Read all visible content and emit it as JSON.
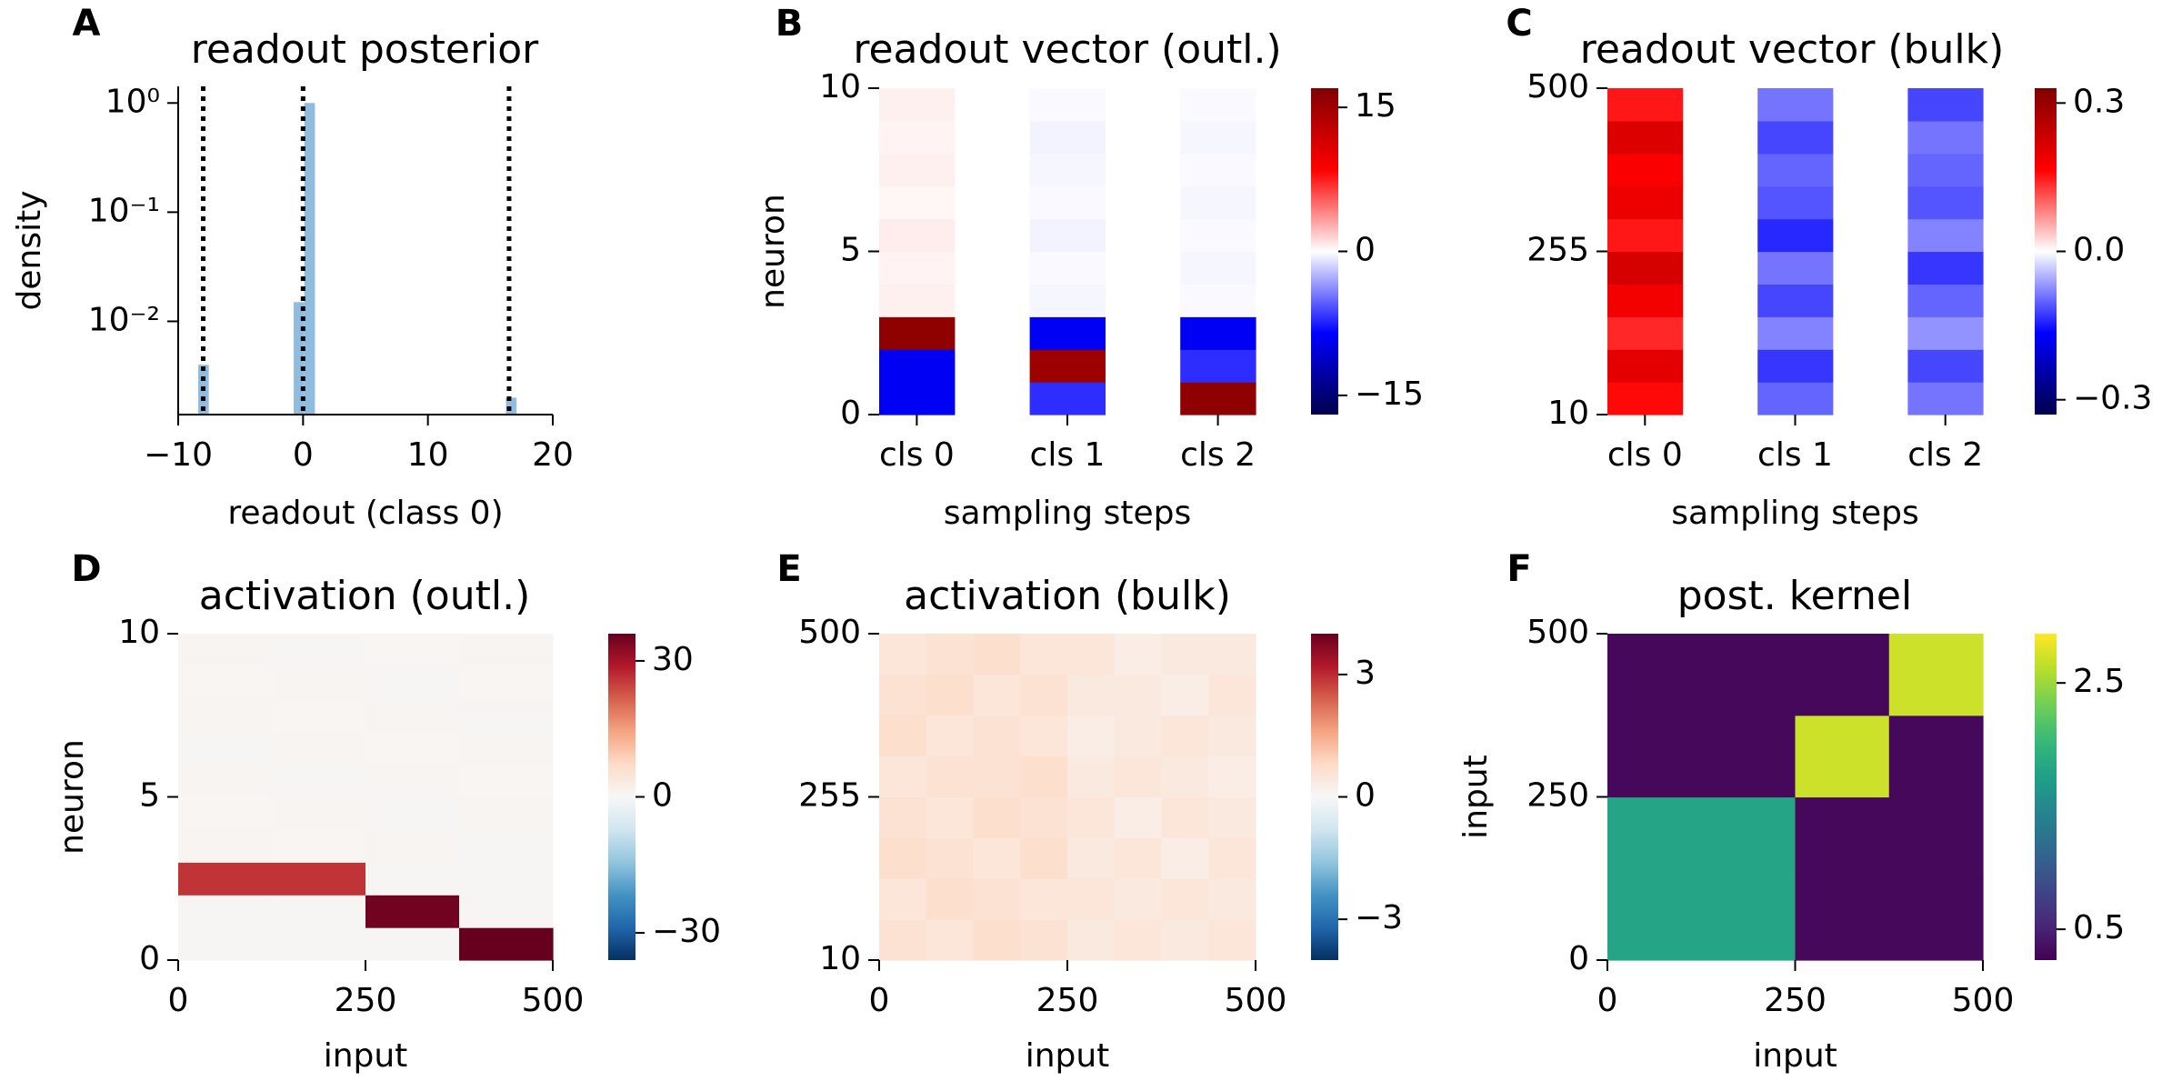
{
  "chart_data": [
    {
      "type": "histogram",
      "label": "A",
      "title": "readout posterior",
      "xlabel": "readout (class 0)",
      "ylabel": "density",
      "bins": [
        -8.4,
        -7.55,
        -6.7,
        -5.85,
        -5.0,
        -4.15,
        -3.3,
        -2.45,
        -1.6,
        -0.75,
        0.1,
        0.95,
        1.8,
        2.65,
        3.5,
        4.35,
        5.2,
        6.05,
        6.9,
        7.75,
        8.6,
        9.45,
        10.3,
        11.15,
        12.0,
        12.85,
        13.7,
        14.55,
        15.4,
        16.25,
        17.1
      ],
      "counts": [
        0.004,
        0,
        0,
        0,
        0,
        0,
        0,
        0,
        0,
        0.015,
        1.0,
        0,
        0,
        0,
        0,
        0,
        0,
        0,
        0,
        0,
        0,
        0,
        0,
        0,
        0,
        0,
        0,
        0,
        0,
        0.002
      ],
      "color": "#8fbcdf",
      "vlines": [
        -8,
        0,
        16.5
      ],
      "vline_color": "#000000",
      "xlim": [
        -10,
        20
      ],
      "xticks": [
        {
          "value": -10,
          "label": "−10"
        },
        0,
        10,
        20
      ],
      "yscale": "log",
      "ylim": [
        0.0014,
        1.42
      ],
      "yticks": [
        {
          "value": 1,
          "label": "10⁰"
        },
        {
          "value": 0.1,
          "label": "10⁻¹"
        },
        {
          "value": 0.01,
          "label": "10⁻²"
        }
      ]
    },
    {
      "type": "heatmap",
      "label": "B",
      "title": "readout vector (outl.)",
      "xlabel": "sampling steps",
      "ylabel": "neuron",
      "categories": [
        "cls 0",
        "cls 1",
        "cls 2"
      ],
      "ylim": [
        0,
        10
      ],
      "yticks": [
        0,
        5,
        10
      ],
      "z": [
        [
          -9,
          -7,
          16
        ],
        [
          -9,
          15,
          -7
        ],
        [
          16,
          -9,
          -9
        ],
        [
          0.5,
          -0.3,
          -0.2
        ],
        [
          0.4,
          -0.2,
          -0.3
        ],
        [
          0.6,
          -0.4,
          -0.2
        ],
        [
          0.3,
          -0.2,
          -0.3
        ],
        [
          0.5,
          -0.3,
          -0.2
        ],
        [
          0.4,
          -0.4,
          -0.3
        ],
        [
          0.5,
          -0.2,
          -0.2
        ]
      ],
      "colormap": "seismic",
      "clim": [
        -17,
        17
      ],
      "cticks": [
        15,
        0,
        {
          "value": -15,
          "label": "−15"
        }
      ]
    },
    {
      "type": "heatmap",
      "label": "C",
      "title": "readout vector (bulk)",
      "xlabel": "sampling steps",
      "categories": [
        "cls 0",
        "cls 1",
        "cls 2"
      ],
      "ylim": [
        10,
        500
      ],
      "yticks": [
        10,
        255,
        500
      ],
      "z": [
        [
          0.16,
          -0.1,
          -0.09
        ],
        [
          0.2,
          -0.13,
          -0.12
        ],
        [
          0.14,
          -0.08,
          -0.07
        ],
        [
          0.18,
          -0.12,
          -0.1
        ],
        [
          0.22,
          -0.09,
          -0.13
        ],
        [
          0.15,
          -0.14,
          -0.08
        ],
        [
          0.19,
          -0.11,
          -0.11
        ],
        [
          0.17,
          -0.1,
          -0.1
        ],
        [
          0.21,
          -0.12,
          -0.09
        ],
        [
          0.15,
          -0.09,
          -0.12
        ]
      ],
      "colormap": "seismic",
      "clim": [
        -0.33,
        0.33
      ],
      "cticks": [
        0.3,
        {
          "value": 0,
          "label": "0.0"
        },
        {
          "value": -0.3,
          "label": "−0.3"
        }
      ]
    },
    {
      "type": "heatmap",
      "label": "D",
      "title": "activation (outl.)",
      "xlabel": "input",
      "ylabel": "neuron",
      "xlim": [
        0,
        500
      ],
      "xticks": [
        0,
        250,
        500
      ],
      "ylim": [
        0,
        10
      ],
      "yticks": [
        0,
        5,
        10
      ],
      "z": [
        [
          0.5,
          0.5,
          0.5,
          36
        ],
        [
          0.5,
          0.5,
          35,
          0.5
        ],
        [
          26,
          26,
          0.5,
          0.5
        ],
        [
          0.8,
          0.6,
          0.7,
          0.5
        ],
        [
          0.6,
          0.8,
          0.5,
          0.7
        ],
        [
          0.7,
          0.5,
          0.8,
          0.6
        ],
        [
          0.5,
          0.7,
          0.6,
          0.8
        ],
        [
          0.8,
          0.6,
          0.7,
          0.5
        ],
        [
          0.6,
          0.7,
          0.5,
          0.6
        ],
        [
          0.7,
          0.5,
          0.6,
          0.7
        ]
      ],
      "colormap": "RdBu_r",
      "clim": [
        -36,
        36
      ],
      "cticks": [
        30,
        0,
        {
          "value": -30,
          "label": "−30"
        }
      ]
    },
    {
      "type": "heatmap",
      "label": "E",
      "title": "activation (bulk)",
      "xlabel": "input",
      "xlim": [
        0,
        500
      ],
      "xticks": [
        0,
        250,
        500
      ],
      "ylim": [
        10,
        500
      ],
      "yticks": [
        10,
        255,
        500
      ],
      "z": [
        [
          0.6,
          0.5,
          0.7,
          0.6,
          0.4,
          0.5,
          0.4,
          0.5
        ],
        [
          0.5,
          0.7,
          0.6,
          0.5,
          0.5,
          0.4,
          0.5,
          0.4
        ],
        [
          0.7,
          0.6,
          0.5,
          0.7,
          0.4,
          0.5,
          0.3,
          0.5
        ],
        [
          0.6,
          0.5,
          0.7,
          0.6,
          0.5,
          0.3,
          0.5,
          0.4
        ],
        [
          0.5,
          0.6,
          0.6,
          0.7,
          0.4,
          0.5,
          0.4,
          0.3
        ],
        [
          0.7,
          0.5,
          0.6,
          0.5,
          0.3,
          0.4,
          0.5,
          0.4
        ],
        [
          0.6,
          0.7,
          0.5,
          0.6,
          0.4,
          0.4,
          0.3,
          0.5
        ],
        [
          0.5,
          0.6,
          0.7,
          0.5,
          0.5,
          0.3,
          0.4,
          0.4
        ]
      ],
      "colormap": "RdBu_r",
      "clim": [
        -4,
        4
      ],
      "cticks": [
        3,
        0,
        {
          "value": -3,
          "label": "−3"
        }
      ]
    },
    {
      "type": "heatmap",
      "label": "F",
      "title": "post. kernel",
      "xlabel": "input",
      "ylabel": "input",
      "xlim": [
        0,
        500
      ],
      "xticks": [
        0,
        250,
        500
      ],
      "ylim": [
        0,
        500
      ],
      "yticks": [
        0,
        250,
        500
      ],
      "z": [
        [
          1.8,
          1.8,
          0.3,
          0.3
        ],
        [
          1.8,
          1.8,
          0.3,
          0.3
        ],
        [
          0.3,
          0.3,
          2.7,
          0.3
        ],
        [
          0.3,
          0.3,
          0.3,
          2.7
        ]
      ],
      "colormap": "viridis",
      "clim": [
        0.25,
        2.9
      ],
      "cticks": [
        2.5,
        0.5
      ]
    }
  ]
}
